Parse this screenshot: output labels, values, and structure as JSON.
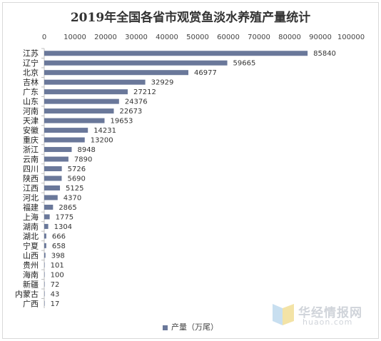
{
  "chart_data": {
    "type": "bar",
    "orientation": "horizontal",
    "title": "2019年全国各省市观赏鱼淡水养殖产量统计",
    "series": [
      {
        "name": "产量（万尾）",
        "color": "#6a789a"
      }
    ],
    "categories": [
      "江苏",
      "辽宁",
      "北京",
      "吉林",
      "广东",
      "山东",
      "河南",
      "天津",
      "安徽",
      "重庆",
      "浙江",
      "云南",
      "四川",
      "陕西",
      "江西",
      "河北",
      "福建",
      "上海",
      "湖南",
      "湖北",
      "宁夏",
      "山西",
      "贵州",
      "海南",
      "新疆",
      "内蒙古",
      "广西"
    ],
    "values": [
      85840,
      59665,
      46977,
      32929,
      27212,
      24376,
      22673,
      19653,
      14231,
      13200,
      8948,
      7890,
      5726,
      5690,
      5125,
      4370,
      2865,
      1775,
      1304,
      666,
      658,
      398,
      101,
      100,
      72,
      43,
      17
    ],
    "xlim": [
      0,
      100000
    ],
    "xticks": [
      "0",
      "10000",
      "20000",
      "30000",
      "40000",
      "50000",
      "60000",
      "70000",
      "80000",
      "90000",
      "100000"
    ],
    "axis_position": "top",
    "legend_position": "bottom"
  },
  "watermark": {
    "cn": "华经情报网",
    "en": "huaon.com"
  }
}
